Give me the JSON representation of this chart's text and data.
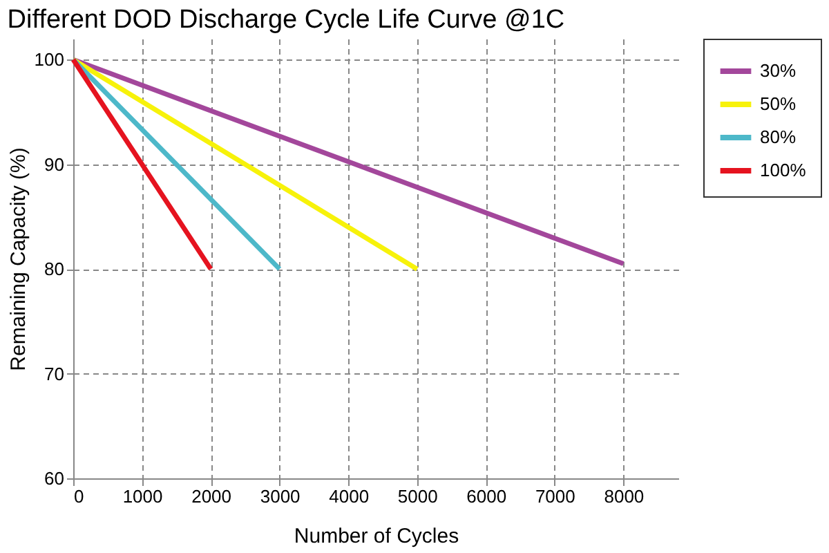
{
  "chart_data": {
    "type": "line",
    "title": "Different DOD Discharge Cycle Life Curve @1C",
    "xlabel": "Number of Cycles",
    "ylabel": "Remaining Capacity (%)",
    "xlim": [
      0,
      8800
    ],
    "ylim": [
      60,
      102
    ],
    "xticks": [
      0,
      1000,
      2000,
      3000,
      4000,
      5000,
      6000,
      7000,
      8000
    ],
    "yticks": [
      60,
      70,
      80,
      90,
      100
    ],
    "grid": true,
    "legend": "right",
    "marker": "none",
    "line_style": "solid",
    "series": [
      {
        "name": "30%",
        "color": "#a3479b",
        "x": [
          0,
          8000
        ],
        "values": [
          100,
          80.5
        ]
      },
      {
        "name": "50%",
        "color": "#f7f20a",
        "x": [
          0,
          5000
        ],
        "values": [
          100,
          80
        ]
      },
      {
        "name": "80%",
        "color": "#4db8c9",
        "x": [
          0,
          3000
        ],
        "values": [
          100,
          80
        ]
      },
      {
        "name": "100%",
        "color": "#e5131f",
        "x": [
          0,
          2000
        ],
        "values": [
          100,
          80
        ]
      }
    ]
  }
}
